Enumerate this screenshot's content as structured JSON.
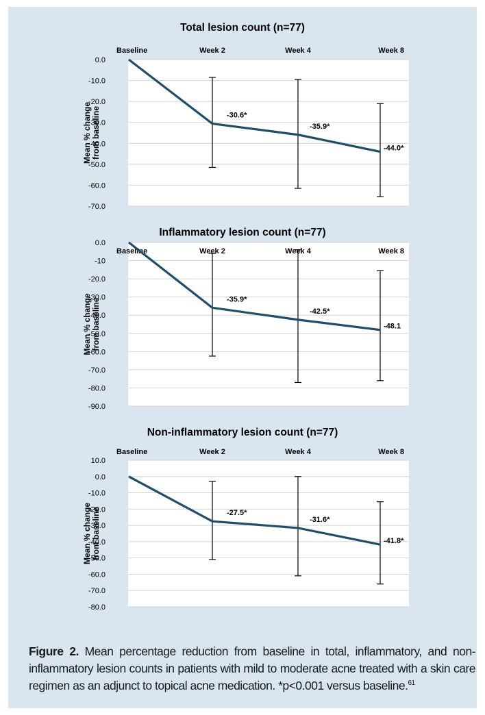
{
  "chart_data": [
    {
      "type": "line",
      "title": "Total lesion count (n=77)",
      "ylabel": "Mean % change from baseline",
      "ylabel_lines": [
        "Mean % change",
        "from baseline"
      ],
      "categories": [
        "Baseline",
        "Week 2",
        "Week 4",
        "Week 8"
      ],
      "values": [
        0,
        -30.6,
        -35.9,
        -44.0
      ],
      "data_labels": [
        "",
        "-30.6*",
        "-35.9*",
        "-44.0*"
      ],
      "error_bars": [
        null,
        [
          -51.5,
          -8.5
        ],
        [
          -61.5,
          -9.5
        ],
        [
          -65.5,
          -21.0
        ]
      ],
      "ylim": [
        -70,
        0
      ],
      "yticks": [
        0,
        -10,
        -20,
        -30,
        -40,
        -50,
        -60,
        -70
      ],
      "ytick_labels": [
        "0.0",
        "-10.0",
        "-20.0",
        "-30.0",
        "-40.0",
        "-50.0",
        "-60.0",
        "-70.0"
      ],
      "grid": true,
      "color": "#1e4e6a"
    },
    {
      "type": "line",
      "title": "Inflammatory lesion count (n=77)",
      "ylabel": "Mean % change from baseline",
      "ylabel_lines": [
        "Mean % change",
        "from baseline"
      ],
      "categories": [
        "Baseline",
        "Week 2",
        "Week 4",
        "Week 8"
      ],
      "values": [
        0,
        -35.9,
        -42.5,
        -48.1
      ],
      "data_labels": [
        "",
        "-35.9*",
        "-42.5*",
        "-48.1"
      ],
      "error_bars": [
        null,
        [
          -62.5,
          -6.0
        ],
        [
          -77.0,
          -4.0
        ],
        [
          -76.0,
          -15.5
        ]
      ],
      "ylim": [
        -90,
        0
      ],
      "yticks": [
        0,
        -10,
        -20,
        -30,
        -40,
        -50,
        -60,
        -70,
        -80,
        -90
      ],
      "ytick_labels": [
        "0.0",
        "-10",
        "-20.0",
        "-30.0",
        "-40.0",
        "-50.0",
        "-60.0",
        "-70.0",
        "-80.0",
        "-90.0"
      ],
      "grid": true,
      "color": "#1e4e6a"
    },
    {
      "type": "line",
      "title": "Non-inflammatory lesion count (n=77)",
      "ylabel": "Mean % change from baseline",
      "ylabel_lines": [
        "Mean % change",
        "from baseline"
      ],
      "categories": [
        "Baseline",
        "Week 2",
        "Week 4",
        "Week 8"
      ],
      "values": [
        0,
        -27.5,
        -31.6,
        -41.8
      ],
      "data_labels": [
        "",
        "-27.5*",
        "-31.6*",
        "-41.8*"
      ],
      "error_bars": [
        null,
        [
          -51.0,
          -3.0
        ],
        [
          -61.0,
          0.0
        ],
        [
          -66.0,
          -15.5
        ]
      ],
      "ylim": [
        -80,
        10
      ],
      "yticks": [
        10,
        0,
        -10,
        -20,
        -30,
        -40,
        -50,
        -60,
        -70,
        -80
      ],
      "ytick_labels": [
        "10.0",
        "0.0",
        "-10.0",
        "-20.0",
        "-30.0",
        "-40.0",
        "-50.0",
        "-60.0",
        "-70.0",
        "-80.0"
      ],
      "grid": true,
      "color": "#1e4e6a"
    }
  ],
  "caption": {
    "label": "Figure 2.",
    "text": " Mean percentage reduction from baseline in total, inflammatory, and non-inflammatory lesion counts in patients with mild to moderate acne treated with a skin care regimen as an adjunct to topical acne medication.  *p<0.001 versus baseline.",
    "reference": "61"
  }
}
